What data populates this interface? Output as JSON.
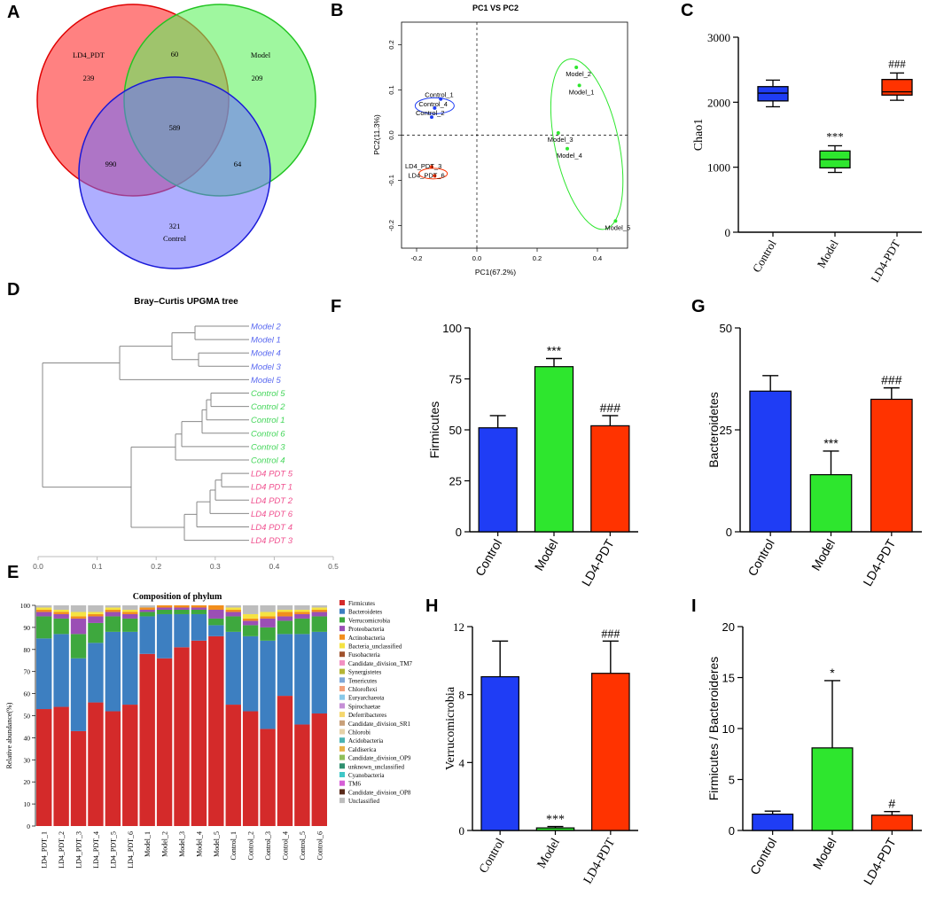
{
  "colors": {
    "red": "#ff3300",
    "green": "#2ee62e",
    "blue": "#1f3df5",
    "venn_red": "#ff6b6b",
    "venn_green": "#5ff25f",
    "venn_blue": "#6b6bff"
  },
  "panel_letters": [
    "A",
    "B",
    "C",
    "D",
    "E",
    "F",
    "G",
    "H",
    "I"
  ],
  "chart_data": [
    {
      "panel": "A",
      "type": "venn",
      "sets": [
        "LD4_PDT",
        "Model",
        "Control"
      ],
      "regions": {
        "ld4_only": "239",
        "model_only": "209",
        "control_only": "321",
        "ld4_model": "60",
        "ld4_control": "990",
        "model_control": "64",
        "all": "589"
      }
    },
    {
      "panel": "B",
      "type": "scatter",
      "title": "PC1 VS PC2",
      "xlabel": "PC1(67.2%)",
      "ylabel": "PC2(11.3%)",
      "xlim": [
        -0.25,
        0.5
      ],
      "ylim": [
        -0.25,
        0.25
      ],
      "xticks": [
        "-0.2",
        "0.0",
        "0.2",
        "0.4"
      ],
      "yticks": [
        "0.2",
        "0.1",
        "0.0",
        "-0.1",
        "-0.2"
      ],
      "points": [
        {
          "label": "Model_2",
          "x": 0.33,
          "y": 0.15,
          "group": "Model"
        },
        {
          "label": "Model_1",
          "x": 0.34,
          "y": 0.11,
          "group": "Model"
        },
        {
          "label": "Model_3",
          "x": 0.27,
          "y": 0.005,
          "group": "Model"
        },
        {
          "label": "Model_4",
          "x": 0.3,
          "y": -0.03,
          "group": "Model"
        },
        {
          "label": "Model_5",
          "x": 0.46,
          "y": -0.19,
          "group": "Model"
        },
        {
          "label": "Control_1",
          "x": -0.12,
          "y": 0.08,
          "group": "Control"
        },
        {
          "label": "Control_4",
          "x": -0.14,
          "y": 0.06,
          "group": "Control"
        },
        {
          "label": "Control_2",
          "x": -0.15,
          "y": 0.04,
          "group": "Control"
        },
        {
          "label": "LD4_PDT_3",
          "x": -0.15,
          "y": -0.07,
          "group": "LD4_PDT"
        },
        {
          "label": "LD4_PDT_6",
          "x": -0.14,
          "y": -0.09,
          "group": "LD4_PDT"
        }
      ]
    },
    {
      "panel": "C",
      "type": "box",
      "ylabel": "Chao1",
      "ylim": [
        0,
        3000
      ],
      "yticks": [
        "0",
        "1000",
        "2000",
        "3000"
      ],
      "categories": [
        "Control",
        "Model",
        "LD4-PDT"
      ],
      "boxes": [
        {
          "min": 1930,
          "q1": 2020,
          "median": 2140,
          "q3": 2240,
          "max": 2340
        },
        {
          "min": 920,
          "q1": 990,
          "median": 1120,
          "q3": 1250,
          "max": 1330
        },
        {
          "min": 2030,
          "q1": 2110,
          "median": 2160,
          "q3": 2350,
          "max": 2450
        }
      ],
      "annotations": [
        "",
        "***",
        "###"
      ]
    },
    {
      "panel": "D",
      "type": "dendrogram",
      "title": "Bray–Curtis UPGMA tree",
      "xlim": [
        0,
        0.5
      ],
      "xticks": [
        "0.0",
        "0.1",
        "0.2",
        "0.3",
        "0.4",
        "0.5"
      ],
      "leaves": [
        "Model 2",
        "Model 1",
        "Model 4",
        "Model 3",
        "Model 5",
        "Control 5",
        "Control 2",
        "Control 1",
        "Control 6",
        "Control 3",
        "Control 4",
        "LD4 PDT 5",
        "LD4 PDT 1",
        "LD4 PDT 2",
        "LD4 PDT 6",
        "LD4 PDT 4",
        "LD4 PDT 3"
      ]
    },
    {
      "panel": "E",
      "type": "stacked_bar",
      "title": "Composition of phylum",
      "ylabel": "Relative abundance(%)",
      "ylim": [
        0,
        100
      ],
      "yticks": [
        "0",
        "10",
        "20",
        "30",
        "40",
        "50",
        "60",
        "70",
        "80",
        "90",
        "100"
      ],
      "categories": [
        "LD4_PDT_1",
        "LD4_PDT_2",
        "LD4_PDT_3",
        "LD4_PDT_4",
        "LD4_PDT_5",
        "LD4_PDT_6",
        "Model_1",
        "Model_2",
        "Model_3",
        "Model_4",
        "Model_5",
        "Control_1",
        "Control_2",
        "Control_3",
        "Control_4",
        "Control_5",
        "Control_6"
      ],
      "series": [
        {
          "name": "Firmicutes",
          "color": "#d42a2a",
          "values": [
            53,
            54,
            43,
            56,
            52,
            55,
            78,
            76,
            81,
            84,
            86,
            55,
            52,
            44,
            59,
            46,
            51
          ]
        },
        {
          "name": "Bacteroidetes",
          "color": "#3d7fc1",
          "values": [
            32,
            33,
            33,
            27,
            36,
            33,
            17,
            20,
            15,
            12,
            5,
            33,
            34,
            40,
            28,
            41,
            37
          ]
        },
        {
          "name": "Verrucomicrobia",
          "color": "#3ea83e",
          "values": [
            10,
            7,
            11,
            9,
            7,
            6,
            2,
            2,
            2,
            2,
            3,
            7,
            5,
            6,
            6,
            7,
            7
          ]
        },
        {
          "name": "Proteobacteria",
          "color": "#9b4fb5",
          "values": [
            2,
            2,
            7,
            3,
            2,
            2,
            1,
            1,
            1,
            1,
            4,
            2,
            2,
            4,
            2,
            2,
            2
          ]
        },
        {
          "name": "Actinobacteria",
          "color": "#f28e1c",
          "values": [
            1,
            1,
            1,
            1,
            1,
            1,
            1,
            1,
            1,
            1,
            2,
            1,
            1,
            1,
            2,
            1,
            1
          ]
        },
        {
          "name": "Bacteria_unclassified",
          "color": "#f5e342",
          "values": [
            1,
            1,
            2,
            1,
            1,
            1,
            0,
            0,
            0,
            0,
            0,
            1,
            2,
            2,
            1,
            1,
            1
          ]
        },
        {
          "name": "Fusobacteria",
          "color": "#a0522d",
          "values": [
            0,
            0,
            0,
            0,
            0,
            0,
            0,
            0,
            0,
            0,
            0,
            0,
            0,
            0,
            0,
            0,
            0
          ]
        },
        {
          "name": "Candidate_division_TM7",
          "color": "#f290c2",
          "values": [
            0,
            0,
            0,
            0,
            0,
            0,
            0,
            0,
            0,
            0,
            0,
            0,
            0,
            0,
            0,
            0,
            0
          ]
        },
        {
          "name": "Synergistetes",
          "color": "#b5b535",
          "values": [
            0,
            0,
            0,
            0,
            0,
            0,
            0,
            0,
            0,
            0,
            0,
            0,
            0,
            0,
            0,
            0,
            0
          ]
        },
        {
          "name": "Tenericutes",
          "color": "#7fa8d8",
          "values": [
            0,
            0,
            0,
            0,
            0,
            0,
            0,
            0,
            0,
            0,
            0,
            0,
            0,
            0,
            0,
            0,
            0
          ]
        },
        {
          "name": "Chloroflexi",
          "color": "#f2a07a",
          "values": [
            0,
            0,
            0,
            0,
            0,
            0,
            0,
            0,
            0,
            0,
            0,
            0,
            0,
            0,
            0,
            0,
            0
          ]
        },
        {
          "name": "Euryarchaeota",
          "color": "#89c9e8",
          "values": [
            0,
            0,
            0,
            0,
            0,
            0,
            0,
            0,
            0,
            0,
            0,
            0,
            0,
            0,
            0,
            0,
            0
          ]
        },
        {
          "name": "Spirochaetae",
          "color": "#c58fd6",
          "values": [
            0,
            0,
            0,
            0,
            0,
            0,
            0,
            0,
            0,
            0,
            0,
            0,
            0,
            0,
            0,
            0,
            0
          ]
        },
        {
          "name": "Deferribacteres",
          "color": "#f5d76e",
          "values": [
            0,
            0,
            0,
            0,
            0,
            0,
            0,
            0,
            0,
            0,
            0,
            0,
            0,
            0,
            0,
            0,
            0
          ]
        },
        {
          "name": "Candidate_division_SR1",
          "color": "#c8a07a",
          "values": [
            0,
            0,
            0,
            0,
            0,
            0,
            0,
            0,
            0,
            0,
            0,
            0,
            0,
            0,
            0,
            0,
            0
          ]
        },
        {
          "name": "Chlorobi",
          "color": "#e6d2a8",
          "values": [
            0,
            0,
            0,
            0,
            0,
            0,
            0,
            0,
            0,
            0,
            0,
            0,
            0,
            0,
            0,
            0,
            0
          ]
        },
        {
          "name": "Acidobacteria",
          "color": "#4bb3b3",
          "values": [
            0,
            0,
            0,
            0,
            0,
            0,
            0,
            0,
            0,
            0,
            0,
            0,
            0,
            0,
            0,
            0,
            0
          ]
        },
        {
          "name": "Caldiserica",
          "color": "#e8b24a",
          "values": [
            0,
            0,
            0,
            0,
            0,
            0,
            0,
            0,
            0,
            0,
            0,
            0,
            0,
            0,
            0,
            0,
            0
          ]
        },
        {
          "name": "Candidate_division_OP9",
          "color": "#8fbf5a",
          "values": [
            0,
            0,
            0,
            0,
            0,
            0,
            0,
            0,
            0,
            0,
            0,
            0,
            0,
            0,
            0,
            0,
            0
          ]
        },
        {
          "name": "unknown_unclassified",
          "color": "#2f8f6f",
          "values": [
            0,
            0,
            0,
            0,
            0,
            0,
            0,
            0,
            0,
            0,
            0,
            0,
            0,
            0,
            0,
            0,
            0
          ]
        },
        {
          "name": "Cyanobacteria",
          "color": "#3fc7c7",
          "values": [
            0,
            0,
            0,
            0,
            0,
            0,
            0,
            0,
            0,
            0,
            0,
            0,
            0,
            0,
            0,
            0,
            0
          ]
        },
        {
          "name": "TM6",
          "color": "#d65fd6",
          "values": [
            0,
            0,
            0,
            0,
            0,
            0,
            0,
            0,
            0,
            0,
            0,
            0,
            0,
            0,
            0,
            0,
            0
          ]
        },
        {
          "name": "Candidate_division_OP8",
          "color": "#5a2a1a",
          "values": [
            0,
            0,
            0,
            0,
            0,
            0,
            0,
            0,
            0,
            0,
            0,
            0,
            0,
            0,
            0,
            0,
            0
          ]
        },
        {
          "name": "Unclassified",
          "color": "#bdbdbd",
          "values": [
            1,
            2,
            3,
            3,
            1,
            2,
            1,
            0,
            0,
            0,
            0,
            1,
            4,
            3,
            2,
            2,
            1
          ]
        }
      ]
    },
    {
      "panel": "F",
      "type": "bar",
      "ylabel": "Firmicutes",
      "ylim": [
        0,
        100
      ],
      "yticks": [
        "0",
        "25",
        "50",
        "75",
        "100"
      ],
      "categories": [
        "Control",
        "Model",
        "LD4-PDT"
      ],
      "values": [
        51,
        81,
        52
      ],
      "errors": [
        6,
        4,
        5
      ],
      "annotations": [
        "",
        "***",
        "###"
      ]
    },
    {
      "panel": "G",
      "type": "bar",
      "ylabel": "Bacteroidetes",
      "ylim": [
        0,
        50
      ],
      "yticks": [
        "0",
        "25",
        "50"
      ],
      "categories": [
        "Control",
        "Model",
        "LD4-PDT"
      ],
      "values": [
        34.5,
        14,
        32.5
      ],
      "errors": [
        3.8,
        5.8,
        2.8
      ],
      "annotations": [
        "",
        "***",
        "###"
      ]
    },
    {
      "panel": "H",
      "type": "bar",
      "ylabel": "Verrucomicrobia",
      "ylim": [
        0,
        12
      ],
      "yticks": [
        "0",
        "4",
        "8",
        "12"
      ],
      "categories": [
        "Control",
        "Model",
        "LD4-PDT"
      ],
      "values": [
        9.05,
        0.15,
        9.25
      ],
      "errors": [
        2.1,
        0.08,
        1.9
      ],
      "annotations": [
        "",
        "***",
        "###"
      ]
    },
    {
      "panel": "I",
      "type": "bar",
      "ylabel": "Firmicutes / Bacteroideres",
      "ylim": [
        0,
        20
      ],
      "yticks": [
        "0",
        "5",
        "10",
        "15",
        "20"
      ],
      "categories": [
        "Control",
        "Model",
        "LD4-PDT"
      ],
      "values": [
        1.6,
        8.1,
        1.5
      ],
      "errors": [
        0.3,
        6.6,
        0.35
      ],
      "annotations": [
        "",
        "*",
        "#"
      ]
    }
  ]
}
